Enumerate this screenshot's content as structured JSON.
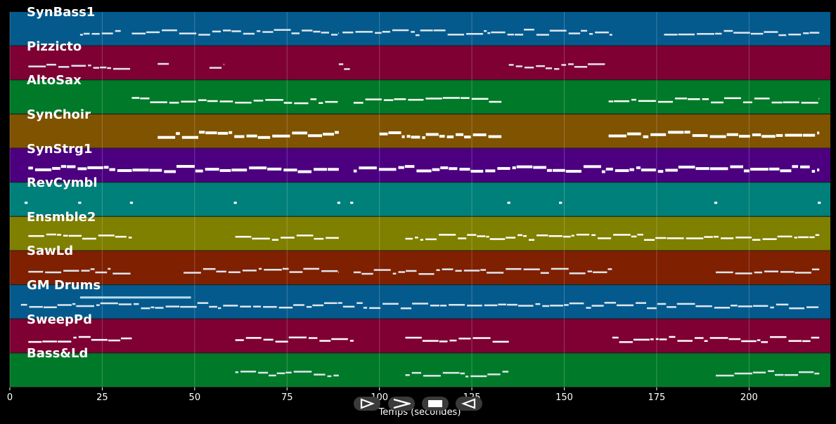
{
  "chart_data": {
    "type": "piano-roll",
    "xlabel": "Temps (secondes)",
    "xlim": [
      0,
      222
    ],
    "xticks": [
      0,
      25,
      50,
      75,
      100,
      125,
      150,
      175,
      200
    ],
    "grid": true,
    "tracks": [
      {
        "name": "SynBass1",
        "color": "#045a8d",
        "segments": [
          [
            19,
            30
          ],
          [
            33,
            89
          ],
          [
            90,
            163
          ],
          [
            177,
            219
          ]
        ]
      },
      {
        "name": "Pizzicto",
        "color": "#7f0033",
        "segments": [
          [
            5,
            33
          ],
          [
            40,
            43
          ],
          [
            54,
            58
          ],
          [
            89,
            92
          ],
          [
            135,
            161
          ]
        ]
      },
      {
        "name": "AltoSax",
        "color": "#007a28",
        "segments": [
          [
            33,
            89
          ],
          [
            93,
            133
          ],
          [
            162,
            219
          ]
        ]
      },
      {
        "name": "SynChoir",
        "color": "#7f5300",
        "segments": [
          [
            40,
            89
          ],
          [
            100,
            133
          ],
          [
            162,
            219
          ]
        ]
      },
      {
        "name": "SynStrg1",
        "color": "#4c0080",
        "segments": [
          [
            5,
            89
          ],
          [
            93,
            219
          ]
        ]
      },
      {
        "name": "RevCymbl",
        "color": "#00807a",
        "segments": [
          [
            4,
            4.8
          ],
          [
            18.5,
            19.3
          ],
          [
            32.5,
            33.3
          ],
          [
            60.6,
            61.4
          ],
          [
            88.6,
            89.4
          ],
          [
            92.1,
            92.9
          ],
          [
            134.6,
            135.4
          ],
          [
            148.6,
            149.4
          ],
          [
            190.6,
            191.4
          ],
          [
            218.6,
            219.4
          ]
        ]
      },
      {
        "name": "Ensmble2",
        "color": "#7f7f00",
        "segments": [
          [
            5,
            33
          ],
          [
            61,
            89
          ],
          [
            107,
            219
          ]
        ]
      },
      {
        "name": "SawLd",
        "color": "#7f2000",
        "segments": [
          [
            5,
            33
          ],
          [
            47,
            89
          ],
          [
            93,
            163
          ],
          [
            191,
            219
          ]
        ]
      },
      {
        "name": "GM Drums",
        "color": "#045a8d",
        "segments": [
          [
            3,
            219
          ]
        ]
      },
      {
        "name": "SweepPd",
        "color": "#7f0033",
        "segments": [
          [
            5,
            33
          ],
          [
            61,
            93
          ],
          [
            107,
            135
          ],
          [
            163,
            219
          ]
        ]
      },
      {
        "name": "Bass&Ld",
        "color": "#007a28",
        "segments": [
          [
            61,
            89
          ],
          [
            107,
            135
          ],
          [
            191,
            219
          ]
        ]
      }
    ]
  },
  "controls": {
    "icons": [
      "play-icon",
      "fast-forward-icon",
      "stop-icon",
      "rewind-icon"
    ]
  }
}
